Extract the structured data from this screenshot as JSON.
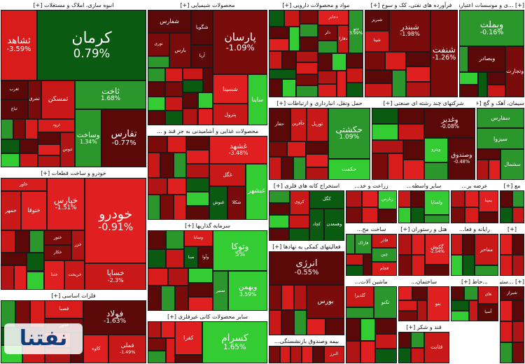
{
  "sectors": [
    {
      "header": "انبوه سازی، املاک و مستغلات [+]",
      "tiles": [
        {
          "label": "کرمان",
          "change": "0.79%",
          "color": "#0b5a12"
        },
        {
          "label": "ثشاهد",
          "change": "-3.59%",
          "color": "#d81c1c"
        },
        {
          "label": "ثاخت",
          "change": "1.68%",
          "color": "#2b962b"
        },
        {
          "label": "تفارس",
          "change": "-0.77%",
          "color": "#5a0808"
        },
        {
          "label": "وساخت",
          "change": "1.34%",
          "color": "#2b962b"
        },
        {
          "label": "ثمسکن",
          "color": "#c81818"
        },
        {
          "label": "ثشرق",
          "color": "#7a0b0b"
        },
        {
          "label": "ثغرب",
          "color": "#5a0808"
        },
        {
          "label": "ثباغ",
          "color": "#5a0808"
        },
        {
          "label": "ثرود",
          "color": "#d81c1c"
        },
        {
          "label": "ثنوس",
          "color": "#b01414"
        }
      ]
    },
    {
      "header": "خودرو و ساخت قطعات [+]",
      "tiles": [
        {
          "label": "خودرو",
          "change": "-0.91%",
          "color": "#e02020"
        },
        {
          "label": "خساپا",
          "change": "-2.3%",
          "color": "#c81818"
        },
        {
          "label": "خپارس",
          "change": "-1.51%",
          "color": "#e02020"
        },
        {
          "label": "خاور",
          "color": "#d81c1c"
        },
        {
          "label": "ختوقا",
          "color": "#e02020"
        },
        {
          "label": "خمهر",
          "color": "#c81818"
        },
        {
          "label": "خزر",
          "color": "#b01414"
        },
        {
          "label": "ختور",
          "color": "#7a0b0b"
        },
        {
          "label": "خکار",
          "color": "#7a0b0b"
        },
        {
          "label": "خریخت",
          "color": "#c81818"
        },
        {
          "label": "ختنا",
          "color": "#e02020"
        }
      ]
    },
    {
      "header": "فلزات اساسی [+]",
      "tiles": [
        {
          "label": "فولاد",
          "change": "-1.63%",
          "color": "#5a0808"
        },
        {
          "label": "فملی",
          "change": "-1.49%",
          "color": "#c81818"
        },
        {
          "label": "کاوه",
          "color": "#e02020"
        },
        {
          "label": "فصبا",
          "color": "#d81c1c"
        },
        {
          "label": "فخوز",
          "color": "#7a0b0b"
        }
      ]
    },
    {
      "header": "محصولات شیمیایی [+]",
      "tiles": [
        {
          "label": "پارسان",
          "change": "-1.09%",
          "color": "#7a0b0b"
        },
        {
          "label": "ساینا",
          "color": "#33cc33"
        },
        {
          "label": "شسینا",
          "color": "#e02020"
        },
        {
          "label": "پترول",
          "color": "#c81818"
        },
        {
          "label": "شگویا",
          "color": "#5a0808"
        },
        {
          "label": "آریا",
          "color": "#5a0808"
        },
        {
          "label": "شفارس",
          "color": "#5a0808"
        },
        {
          "label": "بارس",
          "color": "#7a0b0b"
        },
        {
          "label": "نوری",
          "color": "#7a0b0b"
        }
      ]
    },
    {
      "header": "محصولات غذایی و آشامیدنی به جز قند و ...",
      "tiles": [
        {
          "label": "غشهد",
          "change": "-3.48%",
          "color": "#e02020"
        },
        {
          "label": "غبشهر",
          "color": "#33cc33"
        },
        {
          "label": "غگل",
          "color": "#c81818"
        },
        {
          "label": "شکلا",
          "color": "#7a0b0b"
        },
        {
          "label": "غنوش",
          "color": "#0b5a12"
        }
      ]
    },
    {
      "header": "سرمایه گذاریها [+]",
      "tiles": [
        {
          "label": "وتوکا",
          "change": "5%",
          "color": "#33cc33"
        },
        {
          "label": "وبهمن",
          "change": "3.59%",
          "color": "#33cc33"
        },
        {
          "label": "سنیر",
          "color": "#2b962b"
        },
        {
          "label": "وسابا",
          "color": "#d81c1c"
        },
        {
          "label": "وآوا",
          "color": "#5a0808"
        },
        {
          "label": "صبا",
          "color": "#0b5a12"
        }
      ]
    },
    {
      "header": "سایر محصولات کانی غیرفلزی [+]",
      "tiles": [
        {
          "label": "کسرام",
          "change": "1.65%",
          "color": "#33cc33"
        },
        {
          "label": "کفرا",
          "color": "#e02020"
        }
      ]
    },
    {
      "header": "مواد و محصولات دارویی [+]",
      "tiles": [
        {
          "label": "دتو",
          "change": "3.99%",
          "color": "#2b962b"
        },
        {
          "label": "دجابر",
          "color": "#e02020"
        },
        {
          "label": "دفارا",
          "color": "#c81818"
        },
        {
          "label": "دلر",
          "color": "#7a0b0b"
        }
      ]
    },
    {
      "header": "فرآورده های نفتی، کک و سوخ [+]",
      "tiles": [
        {
          "label": "شنفت",
          "change": "-1.26%",
          "color": "#7a0b0b"
        },
        {
          "label": "شبندر",
          "change": "-1.98%",
          "color": "#7a0b0b"
        },
        {
          "label": "شبریز",
          "color": "#5a0808"
        },
        {
          "label": "شپنا",
          "color": "#c81818"
        }
      ]
    },
    {
      "header": "[+] ...ی و موسسات اعتباری",
      "tiles": [
        {
          "label": "وبملت",
          "change": "-0.16%",
          "color": "#2b962b"
        },
        {
          "label": "وتجارت",
          "color": "#7a0b0b"
        },
        {
          "label": "وبصادر",
          "color": "#5a0808"
        }
      ]
    },
    {
      "header": "حمل ونقل، انبارداری و ارتباطات [+]",
      "tiles": [
        {
          "label": "حکشتی",
          "change": "1.09%",
          "color": "#2b962b"
        },
        {
          "label": "حکمت",
          "color": "#33cc33"
        },
        {
          "label": "توریل",
          "color": "#c81818"
        },
        {
          "label": "حآفرین",
          "color": "#c81818"
        },
        {
          "label": "حفار",
          "color": "#5a0808"
        }
      ]
    },
    {
      "header": "شرکتهای چند رشته ای صنعتی [+]",
      "tiles": [
        {
          "label": "وغدیر",
          "change": "-0.08%",
          "color": "#5a0808"
        },
        {
          "label": "وصندوق",
          "change": "-0.48%",
          "color": "#5a0808"
        },
        {
          "label": "وپترو",
          "color": "#33cc33"
        }
      ]
    },
    {
      "header": "سیمان، آهک و گچ [+]",
      "tiles": [
        {
          "label": "سفارس",
          "color": "#2b962b"
        },
        {
          "label": "سیزوا",
          "color": "#2b962b"
        },
        {
          "label": "سشمال",
          "color": "#2b962b"
        }
      ]
    },
    {
      "header": "استخراج کانه های فلزی [+]",
      "tiles": [
        {
          "label": "کگل",
          "color": "#0b5a12"
        },
        {
          "label": "وهمعدن",
          "color": "#0b5a12"
        },
        {
          "label": "کچاد",
          "color": "#0b5a12"
        },
        {
          "label": "کروی",
          "color": "#c81818"
        }
      ]
    },
    {
      "header": "زراعت و خد...",
      "tiles": [
        {
          "label": "زبارس",
          "color": "#33cc33"
        }
      ]
    },
    {
      "header": "سایر واسطه...",
      "tiles": [
        {
          "label": "ولساپا",
          "color": "#33cc33"
        }
      ]
    },
    {
      "header": "عرضه بر...",
      "tiles": [
        {
          "label": "بمپنا",
          "color": "#e02020"
        }
      ]
    },
    {
      "header": "مع [+]",
      "tiles": []
    },
    {
      "header": "فعالیتهای کمکی به نهادها [+]",
      "tiles": [
        {
          "label": "انرژی",
          "change": "-0.55%",
          "color": "#5a0808"
        },
        {
          "label": "بورس",
          "color": "#7a0b0b"
        }
      ]
    },
    {
      "header": "ساخت مح...",
      "tiles": [
        {
          "label": "فاذر",
          "color": "#c81818"
        },
        {
          "label": "چین",
          "color": "#2b962b"
        },
        {
          "label": "فجام",
          "color": "#d81c1c"
        },
        {
          "label": "فاراک",
          "color": "#2b962b"
        }
      ]
    },
    {
      "header": "هتل و رستوران [+]",
      "tiles": [
        {
          "label": "گکیش",
          "change": "-2.54%",
          "color": "#e02020"
        }
      ]
    },
    {
      "header": "رایانه و فعا...",
      "tiles": [
        {
          "label": "مفاخر",
          "color": "#c81818"
        }
      ]
    },
    {
      "header": "[+]",
      "tiles": []
    },
    {
      "header": "ماشین آلات...",
      "tiles": [
        {
          "label": "تکنو",
          "color": "#2b962b"
        },
        {
          "label": "گلدیرا",
          "color": "#c81818"
        }
      ]
    },
    {
      "header": "ساختمان...",
      "tiles": [
        {
          "label": "بنو",
          "color": "#e02020"
        }
      ]
    },
    {
      "header": "...حاط [+]",
      "tiles": [
        {
          "label": "های",
          "color": "#c81818"
        },
        {
          "label": "آسیا",
          "color": "#5a0808"
        }
      ]
    },
    {
      "header": "[+] ...ستیک",
      "tiles": [
        {
          "label": "شیراز",
          "color": "#5a0808"
        }
      ]
    },
    {
      "header": "قند و شکر [+]",
      "tiles": [
        {
          "label": "قثابت",
          "color": "#c81818"
        }
      ]
    },
    {
      "header": "بیمه وصندوق بازنشستگی...",
      "tiles": [
        {
          "label": "البرز",
          "color": "#c81818"
        }
      ]
    }
  ],
  "watermark": "نفتنا"
}
